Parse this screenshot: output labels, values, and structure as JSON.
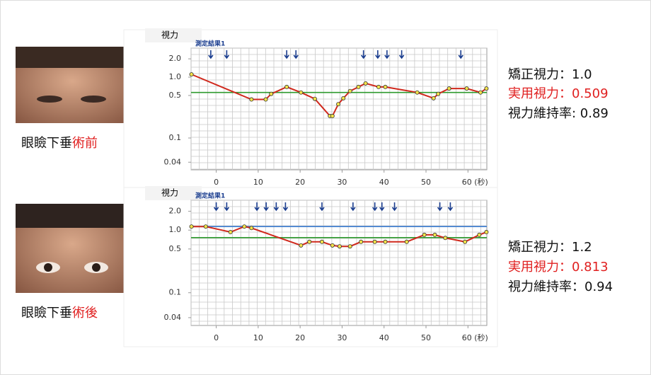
{
  "chart_data": [
    {
      "type": "line",
      "title": "測定結果1",
      "y_label": "視力",
      "log_y": true,
      "xlim": [
        -6,
        64.5
      ],
      "ylim": [
        0.03,
        3
      ],
      "xticks": [
        0,
        10,
        20,
        30,
        40,
        50,
        {
          "value": 60,
          "label": "60 (秒)"
        }
      ],
      "yticks": [
        {
          "value": 2,
          "label": "2.0"
        },
        {
          "value": 1,
          "label": "1.0"
        },
        0.5,
        0.1,
        0.04
      ],
      "x": [
        -5.9,
        8.4,
        11.8,
        13.1,
        16.8,
        20.2,
        23.5,
        27.1,
        27.7,
        29.1,
        30.3,
        31.9,
        33.9,
        35.6,
        38.7,
        40.3,
        47.9,
        51.8,
        52.9,
        55.5,
        59.7,
        63,
        64.4
      ],
      "series": [
        {
          "color": "#d0281c",
          "values": [
            1.11,
            0.43,
            0.43,
            0.53,
            0.69,
            0.56,
            0.44,
            0.23,
            0.23,
            0.36,
            0.45,
            0.59,
            0.69,
            0.79,
            0.69,
            0.69,
            0.56,
            0.45,
            0.53,
            0.65,
            0.65,
            0.56,
            0.65
          ]
        }
      ],
      "reference_lines": [
        {
          "value": 0.56,
          "color": "#2e9a2e"
        }
      ],
      "markers_x": [
        -1.3,
        2.5,
        16.8,
        19,
        35.1,
        38.5,
        40.7,
        44.2,
        58.3
      ],
      "marker_color": "#1a3d8f"
    },
    {
      "type": "line",
      "title": "測定結果1",
      "y_label": "視力",
      "log_y": true,
      "xlim": [
        -6,
        64.5
      ],
      "ylim": [
        0.03,
        3
      ],
      "xticks": [
        0,
        10,
        20,
        30,
        40,
        50,
        {
          "value": 60,
          "label": "60 (秒)"
        }
      ],
      "yticks": [
        {
          "value": 2,
          "label": "2.0"
        },
        {
          "value": 1,
          "label": "1.0"
        },
        0.5,
        0.1,
        0.04
      ],
      "x": [
        -5.9,
        -2.5,
        3.4,
        6.7,
        8.4,
        20.2,
        22.2,
        25.2,
        27.7,
        29.4,
        31.9,
        34.5,
        37.8,
        40.3,
        45.4,
        49.6,
        52.1,
        54.6,
        59.3,
        62.7,
        64.4
      ],
      "series": [
        {
          "color": "#d0281c",
          "values": [
            1.14,
            1.14,
            0.93,
            1.14,
            1.08,
            0.57,
            0.65,
            0.65,
            0.57,
            0.55,
            0.55,
            0.65,
            0.65,
            0.65,
            0.65,
            0.84,
            0.84,
            0.75,
            0.65,
            0.84,
            0.93
          ]
        }
      ],
      "reference_lines": [
        {
          "value": 1.14,
          "color": "#3b7bd0"
        },
        {
          "value": 0.76,
          "color": "#2e9a2e"
        }
      ],
      "markers_x": [
        0,
        2.5,
        9.7,
        11.9,
        14.3,
        16.5,
        25.2,
        32.6,
        37.8,
        39.5,
        42.5,
        53.3,
        55.8
      ],
      "marker_color": "#1a3d8f"
    }
  ],
  "panels": [
    {
      "caption": "眼瞼下垂",
      "caption_highlight": "術前",
      "stats": [
        "矯正視力：1.0",
        "実用視力：0.509",
        "視力維持率: 0.89"
      ]
    },
    {
      "caption": "眼瞼下垂",
      "caption_highlight": "術後",
      "stats": [
        "矯正視力：1.2",
        "実用視力：0.813",
        "視力維持率：0.94"
      ]
    }
  ]
}
